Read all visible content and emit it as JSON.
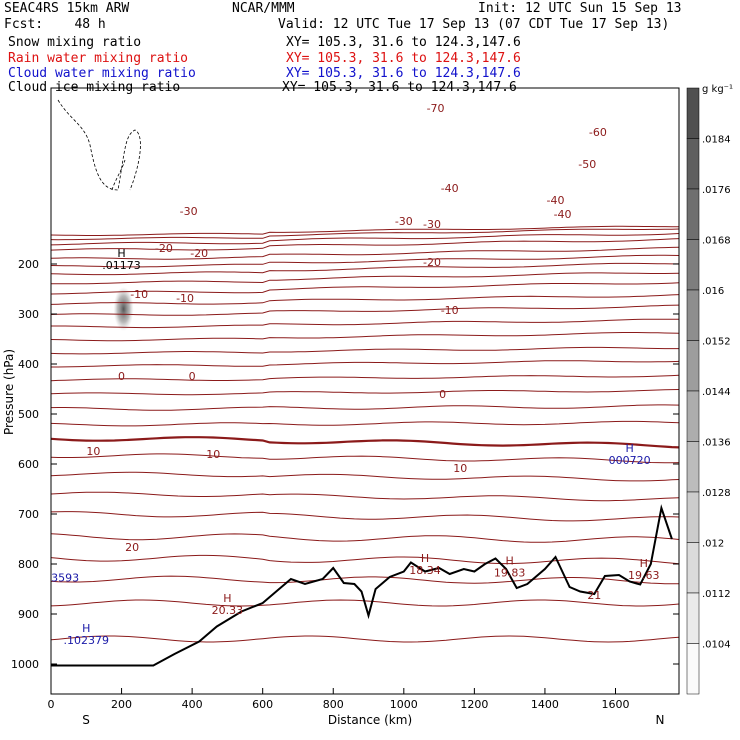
{
  "header": {
    "model": "SEAC4RS 15km ARW",
    "center": "NCAR/MMM",
    "init": "Init: 12 UTC Sun 15 Sep 13",
    "fcst": "Fcst:    48 h",
    "valid": "Valid: 12 UTC Tue 17 Sep 13 (07 CDT Tue 17 Sep 13)",
    "fields": [
      {
        "label": "Snow mixing ratio",
        "xy": "XY= 105.3, 31.6 to 124.3,147.6",
        "color": "#000000"
      },
      {
        "label": "Rain water mixing ratio",
        "xy": "XY= 105.3, 31.6 to 124.3,147.6",
        "color": "#dd1111"
      },
      {
        "label": "Cloud water mixing ratio",
        "xy": "XY= 105.3, 31.6 to 124.3,147.6",
        "color": "#1111cc"
      },
      {
        "label": "Cloud ice mixing ratio",
        "xy": "XY= 105.3, 31.6 to 124.3,147.6",
        "color": "#000000"
      }
    ]
  },
  "colorbar": {
    "unit": "g kg⁻¹",
    "ticks": [
      ".0104",
      ".0112",
      ".012",
      ".0128",
      ".0136",
      ".0144",
      ".0152",
      ".016",
      ".0168",
      ".0176",
      ".0184"
    ]
  },
  "chart_data": {
    "type": "contour cross-section",
    "xlabel": "Distance (km)",
    "ylabel": "Pressure (hPa)",
    "xlim": [
      0,
      1780
    ],
    "ylim": [
      1050,
      100
    ],
    "x_ticks": [
      "0",
      "200",
      "400",
      "600",
      "800",
      "1000",
      "1200",
      "1400",
      "1600"
    ],
    "y_ticks": [
      "200",
      "300",
      "400",
      "500",
      "600",
      "700",
      "800",
      "900",
      "1000"
    ],
    "x_end_labels": [
      "S",
      "N"
    ],
    "temperature_contour_labels": [
      "-70",
      "-60",
      "-50",
      "-40",
      "-40",
      "-40",
      "-30",
      "-30",
      "-30",
      "-20",
      "-20",
      "-20",
      "-10",
      "-10",
      "-10",
      "0",
      "0",
      "0",
      "10",
      "10",
      "10",
      "20"
    ],
    "max_labels": [
      {
        "label": "H",
        "value": ".01173",
        "x": 200,
        "p": 210
      },
      {
        "label": "H",
        "value": "000720",
        "x": 1640,
        "p": 600
      },
      {
        "label": "H",
        "value": "18.34",
        "x": 1060,
        "p": 820
      },
      {
        "label": "H",
        "value": "19.83",
        "x": 1300,
        "p": 825
      },
      {
        "label": "H",
        "value": "19.63",
        "x": 1680,
        "p": 830
      },
      {
        "label": "H",
        "value": "20.33",
        "x": 500,
        "p": 900
      },
      {
        "label": "H",
        "value": ".102379",
        "x": 100,
        "p": 960
      },
      {
        "label": "",
        "value": "3593",
        "x": 40,
        "p": 835
      },
      {
        "label": "",
        "value": "21",
        "x": 1540,
        "p": 870
      }
    ],
    "terrain_pressure": [
      [
        0,
        1003
      ],
      [
        290,
        1003
      ],
      [
        350,
        980
      ],
      [
        420,
        955
      ],
      [
        470,
        925
      ],
      [
        540,
        895
      ],
      [
        600,
        878
      ],
      [
        650,
        848
      ],
      [
        680,
        830
      ],
      [
        720,
        840
      ],
      [
        770,
        830
      ],
      [
        800,
        808
      ],
      [
        830,
        838
      ],
      [
        860,
        840
      ],
      [
        880,
        855
      ],
      [
        900,
        903
      ],
      [
        920,
        850
      ],
      [
        960,
        826
      ],
      [
        1000,
        815
      ],
      [
        1020,
        797
      ],
      [
        1060,
        815
      ],
      [
        1100,
        808
      ],
      [
        1130,
        820
      ],
      [
        1170,
        810
      ],
      [
        1200,
        815
      ],
      [
        1230,
        800
      ],
      [
        1260,
        789
      ],
      [
        1290,
        810
      ],
      [
        1320,
        848
      ],
      [
        1350,
        840
      ],
      [
        1400,
        810
      ],
      [
        1430,
        786
      ],
      [
        1470,
        846
      ],
      [
        1500,
        855
      ],
      [
        1540,
        860
      ],
      [
        1570,
        824
      ],
      [
        1610,
        822
      ],
      [
        1640,
        835
      ],
      [
        1670,
        841
      ],
      [
        1700,
        800
      ],
      [
        1730,
        688
      ],
      [
        1760,
        750
      ]
    ],
    "snow_max_g_kg": 0.01173
  }
}
